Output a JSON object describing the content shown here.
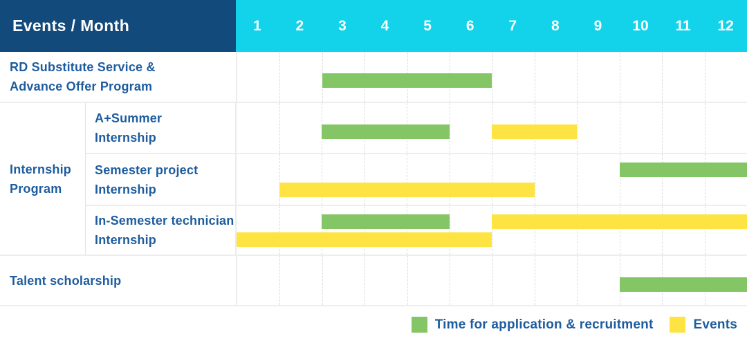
{
  "colors": {
    "navy": "#134a7c",
    "cyan": "#12d3e9",
    "green": "#84c566",
    "yellow": "#fde443",
    "label_blue": "#1d5c9e"
  },
  "header": {
    "title": "Events / Month",
    "months": [
      "1",
      "2",
      "3",
      "4",
      "5",
      "6",
      "7",
      "8",
      "9",
      "10",
      "11",
      "12"
    ]
  },
  "chart_data": {
    "type": "gantt",
    "x_axis_label": "Month",
    "x_range": [
      1,
      12
    ],
    "group_label": "Internship Program",
    "rows": [
      {
        "label": "RD Substitute Service & Advance Offer Program",
        "group": null,
        "bars": [
          {
            "series": "Time for application & recruitment",
            "color": "green",
            "start_month": 3,
            "end_month": 6,
            "lane": "single"
          }
        ]
      },
      {
        "label": "A+Summer Internship",
        "group": "Internship Program",
        "bars": [
          {
            "series": "Time for application & recruitment",
            "color": "green",
            "start_month": 3,
            "end_month": 5,
            "lane": "single"
          },
          {
            "series": "Events",
            "color": "yellow",
            "start_month": 7,
            "end_month": 8,
            "lane": "single"
          }
        ]
      },
      {
        "label": "Semester project Internship",
        "group": "Internship Program",
        "bars": [
          {
            "series": "Time for application & recruitment",
            "color": "green",
            "start_month": 10,
            "end_month": 12,
            "lane": "top"
          },
          {
            "series": "Events",
            "color": "yellow",
            "start_month": 2,
            "end_month": 7,
            "lane": "bottom"
          }
        ]
      },
      {
        "label": "In-Semester technician Internship",
        "group": "Internship Program",
        "bars": [
          {
            "series": "Time for application & recruitment",
            "color": "green",
            "start_month": 3,
            "end_month": 5,
            "lane": "top"
          },
          {
            "series": "Events",
            "color": "yellow",
            "start_month": 7,
            "end_month": 12,
            "lane": "top"
          },
          {
            "series": "Events",
            "color": "yellow",
            "start_month": 1,
            "end_month": 6,
            "lane": "bottom"
          }
        ]
      },
      {
        "label": "Talent scholarship",
        "group": null,
        "bars": [
          {
            "series": "Time for application & recruitment",
            "color": "green",
            "start_month": 10,
            "end_month": 12,
            "lane": "single"
          }
        ]
      }
    ]
  },
  "legend": {
    "items": [
      {
        "color": "green",
        "label": "Time for application & recruitment"
      },
      {
        "color": "yellow",
        "label": "Events"
      }
    ]
  }
}
